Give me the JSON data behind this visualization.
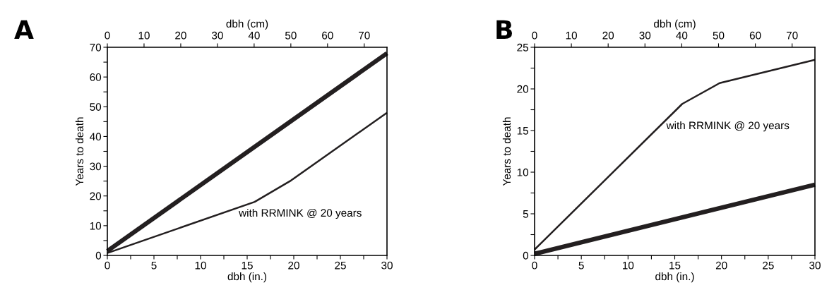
{
  "chart_data": [
    {
      "type": "line",
      "xlabel": "dbh (in.)",
      "x2label": "dbh (cm)",
      "ylabel": "Years to death",
      "annotations": [
        "A",
        "with RRMINK @ 20 years"
      ],
      "series": [
        {
          "color": "#231f20",
          "x": [
            0,
            30
          ],
          "values": [
            1.5,
            68
          ]
        },
        {
          "color": "#231f20",
          "x": [
            0,
            15.8,
            19.7,
            30
          ],
          "values": [
            0.8,
            18,
            25.2,
            48
          ]
        }
      ],
      "xlim": [
        0,
        30
      ],
      "xticks": [
        0,
        {
          "value": 2.5,
          "label": null
        },
        5,
        {
          "value": 7.5,
          "label": null
        },
        10,
        {
          "value": 12.5,
          "label": null
        },
        15,
        {
          "value": 17.5,
          "label": null
        },
        20,
        {
          "value": 22.5,
          "label": null
        },
        25,
        {
          "value": 27.5,
          "label": null
        },
        30
      ],
      "x2lim": [
        0,
        76.2
      ],
      "x2ticks": [
        0,
        10,
        20,
        30,
        40,
        50,
        60,
        70
      ],
      "ylim": [
        0,
        70
      ],
      "yticks": [
        0,
        {
          "value": 5,
          "label": null
        },
        10,
        {
          "value": 15,
          "label": null
        },
        20,
        {
          "value": 25,
          "label": null
        },
        30,
        {
          "value": 35,
          "label": null
        },
        40,
        {
          "value": 45,
          "label": null
        },
        50,
        {
          "value": 55,
          "label": null
        },
        60,
        {
          "value": 65,
          "label": null
        },
        70
      ],
      "grid": false,
      "marker": "none",
      "line_style": "solid"
    },
    {
      "type": "line",
      "xlabel": "dbh (in.)",
      "x2label": "dbh (cm)",
      "ylabel": "Years to death",
      "annotations": [
        "B",
        "with RRMINK @ 20 years"
      ],
      "series": [
        {
          "color": "#231f20",
          "x": [
            0,
            30
          ],
          "values": [
            0.2,
            8.5
          ]
        },
        {
          "color": "#231f20",
          "x": [
            0,
            15.8,
            19.8,
            30
          ],
          "values": [
            0.7,
            18.2,
            20.7,
            23.5
          ]
        }
      ],
      "xlim": [
        0,
        30
      ],
      "xticks": [
        0,
        {
          "value": 2.5,
          "label": null
        },
        5,
        {
          "value": 7.5,
          "label": null
        },
        10,
        {
          "value": 12.5,
          "label": null
        },
        15,
        {
          "value": 17.5,
          "label": null
        },
        20,
        {
          "value": 22.5,
          "label": null
        },
        25,
        {
          "value": 27.5,
          "label": null
        },
        30
      ],
      "x2lim": [
        0,
        76.2
      ],
      "x2ticks": [
        0,
        10,
        20,
        30,
        40,
        50,
        60,
        70
      ],
      "ylim": [
        0,
        25
      ],
      "yticks": [
        0,
        {
          "value": 2.5,
          "label": null
        },
        5,
        {
          "value": 7.5,
          "label": null
        },
        10,
        {
          "value": 12.5,
          "label": null
        },
        15,
        {
          "value": 17.5,
          "label": null
        },
        20,
        {
          "value": 22.5,
          "label": null
        },
        25
      ],
      "grid": false,
      "marker": "none",
      "line_style": "solid"
    }
  ]
}
